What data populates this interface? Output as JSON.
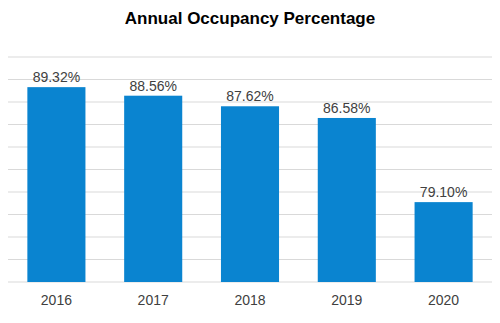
{
  "chart_data": {
    "type": "bar",
    "title": "Annual Occupancy Percentage",
    "categories": [
      "2016",
      "2017",
      "2018",
      "2019",
      "2020"
    ],
    "values": [
      89.32,
      88.56,
      87.62,
      86.58,
      79.1
    ],
    "value_labels": [
      "89.32%",
      "88.56%",
      "87.62%",
      "86.58%",
      "79.10%"
    ],
    "color": "#0a84d0",
    "ylim": [
      72,
      92
    ],
    "yticks": [
      72,
      74,
      76,
      78,
      80,
      82,
      84,
      86,
      88,
      90,
      92
    ],
    "grid": true,
    "data_labels": true,
    "tick_labels": "x"
  }
}
